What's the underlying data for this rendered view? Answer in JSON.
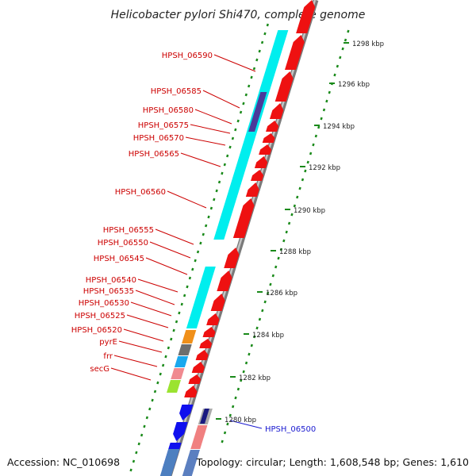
{
  "title": "Helicobacter pylori Shi470, complete genome",
  "footer": {
    "accession": "Accession: NC_010698",
    "summary": "Topology: circular; Length: 1,608,548 bp; Genes: 1,610"
  },
  "colors": {
    "backbone": "#8a8a8a",
    "forward_gene": "#ee1111",
    "reverse_gene": "#1010ee",
    "label_red": "#cc0000",
    "label_blue": "#1a1ad0",
    "dotted_track": "#1a8a1a",
    "cyan_track": "#00eeee"
  },
  "ticks": [
    {
      "label": "1298 kbp"
    },
    {
      "label": "1296 kbp"
    },
    {
      "label": "1294 kbp"
    },
    {
      "label": "1292 kbp"
    },
    {
      "label": "1290 kbp"
    },
    {
      "label": "1288 kbp"
    },
    {
      "label": "1286 kbp"
    },
    {
      "label": "1284 kbp"
    },
    {
      "label": "1282 kbp"
    },
    {
      "label": "1280 kbp"
    }
  ],
  "gene_labels": [
    {
      "text": "HPSH_06590",
      "color": "red"
    },
    {
      "text": "HPSH_06585",
      "color": "red"
    },
    {
      "text": "HPSH_06580",
      "color": "red"
    },
    {
      "text": "HPSH_06575",
      "color": "red"
    },
    {
      "text": "HPSH_06570",
      "color": "red"
    },
    {
      "text": "HPSH_06565",
      "color": "red"
    },
    {
      "text": "HPSH_06560",
      "color": "red"
    },
    {
      "text": "HPSH_06555",
      "color": "red"
    },
    {
      "text": "HPSH_06550",
      "color": "red"
    },
    {
      "text": "HPSH_06545",
      "color": "red"
    },
    {
      "text": "HPSH_06540",
      "color": "red"
    },
    {
      "text": "HPSH_06535",
      "color": "red"
    },
    {
      "text": "HPSH_06530",
      "color": "red"
    },
    {
      "text": "HPSH_06525",
      "color": "red"
    },
    {
      "text": "HPSH_06520",
      "color": "red"
    },
    {
      "text": "pyrE",
      "color": "red"
    },
    {
      "text": "frr",
      "color": "red"
    },
    {
      "text": "secG",
      "color": "red"
    },
    {
      "text": "HPSH_06500",
      "color": "blue"
    }
  ]
}
